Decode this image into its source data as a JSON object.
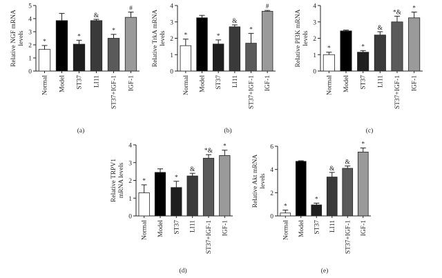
{
  "chart_data": [
    {
      "type": "bar",
      "label": "(a)",
      "ylabel": [
        "Relative NGF mRNA",
        "levels"
      ],
      "categories": [
        "Normal",
        "Model",
        "ST37",
        "LI11",
        "ST37+IGF-1",
        "IGF-1"
      ],
      "values": [
        1.65,
        3.85,
        2.05,
        3.85,
        2.5,
        4.1
      ],
      "errors": [
        0.3,
        0.55,
        0.3,
        0.1,
        0.3,
        0.4
      ],
      "annotations": [
        "*",
        null,
        "*",
        "&",
        "*",
        "#"
      ],
      "colors": [
        "#ffffff",
        "#000000",
        "#1e1e1e",
        "#3a3a3a",
        "#5a5a5a",
        "#9a9a9a"
      ],
      "ylim": [
        0,
        5
      ],
      "yticks": [
        0,
        1,
        2,
        3,
        4,
        5
      ]
    },
    {
      "type": "bar",
      "label": "(b)",
      "ylabel": [
        "Relative TrkA mRNA",
        "levels"
      ],
      "categories": [
        "Normal",
        "Model",
        "ST37",
        "LI11",
        "ST37+IGF-1",
        "IGF-1"
      ],
      "values": [
        1.55,
        3.25,
        1.65,
        2.7,
        1.7,
        3.65
      ],
      "errors": [
        0.4,
        0.15,
        0.25,
        0.12,
        0.6,
        0.05
      ],
      "annotations": [
        "*",
        null,
        "*",
        "&",
        "*",
        "#"
      ],
      "colors": [
        "#ffffff",
        "#000000",
        "#1e1e1e",
        "#3a3a3a",
        "#5a5a5a",
        "#9a9a9a"
      ],
      "ylim": [
        0,
        4
      ],
      "yticks": [
        0,
        1,
        2,
        3,
        4
      ]
    },
    {
      "type": "bar",
      "label": "(c)",
      "ylabel": [
        "Relative PI3K mRNA",
        "levels"
      ],
      "categories": [
        "Normal",
        "Model",
        "ST37",
        "LI11",
        "ST37+IGF-1",
        "IGF-1"
      ],
      "values": [
        1.0,
        2.45,
        1.15,
        2.2,
        3.0,
        3.25
      ],
      "errors": [
        0.15,
        0.05,
        0.1,
        0.2,
        0.35,
        0.35
      ],
      "annotations": [
        "*",
        null,
        "*",
        "&",
        "*&",
        "*"
      ],
      "colors": [
        "#ffffff",
        "#000000",
        "#1e1e1e",
        "#3a3a3a",
        "#5a5a5a",
        "#9a9a9a"
      ],
      "ylim": [
        0,
        4
      ],
      "yticks": [
        0,
        1,
        2,
        3,
        4
      ]
    },
    {
      "type": "bar",
      "label": "(d)",
      "ylabel": [
        "Relative TRPV1",
        "mRNA levels"
      ],
      "categories": [
        "Normal",
        "Model",
        "ST37",
        "LI11",
        "ST37+IGF-1",
        "IGF-1"
      ],
      "values": [
        1.3,
        2.45,
        1.6,
        2.25,
        3.25,
        3.4
      ],
      "errors": [
        0.45,
        0.2,
        0.35,
        0.15,
        0.2,
        0.3
      ],
      "annotations": [
        "*",
        null,
        "*",
        "&",
        "*&",
        "*"
      ],
      "colors": [
        "#ffffff",
        "#000000",
        "#1e1e1e",
        "#3a3a3a",
        "#5a5a5a",
        "#9a9a9a"
      ],
      "ylim": [
        0,
        4
      ],
      "yticks": [
        0,
        1,
        2,
        3,
        4
      ]
    },
    {
      "type": "bar",
      "label": "(e)",
      "ylabel": [
        "Relative Akt mRNA",
        "levels"
      ],
      "categories": [
        "Normal",
        "Model",
        "ST37",
        "LI11",
        "ST37+IGF-1",
        "IGF-1"
      ],
      "values": [
        0.25,
        4.7,
        0.95,
        3.35,
        4.1,
        5.5
      ],
      "errors": [
        0.25,
        0.05,
        0.15,
        0.4,
        0.2,
        0.35
      ],
      "annotations": [
        "*",
        null,
        "*",
        "&",
        "&",
        "*"
      ],
      "colors": [
        "#ffffff",
        "#000000",
        "#1e1e1e",
        "#3a3a3a",
        "#5a5a5a",
        "#9a9a9a"
      ],
      "ylim": [
        0,
        6
      ],
      "yticks": [
        0,
        2,
        4,
        6
      ]
    }
  ]
}
